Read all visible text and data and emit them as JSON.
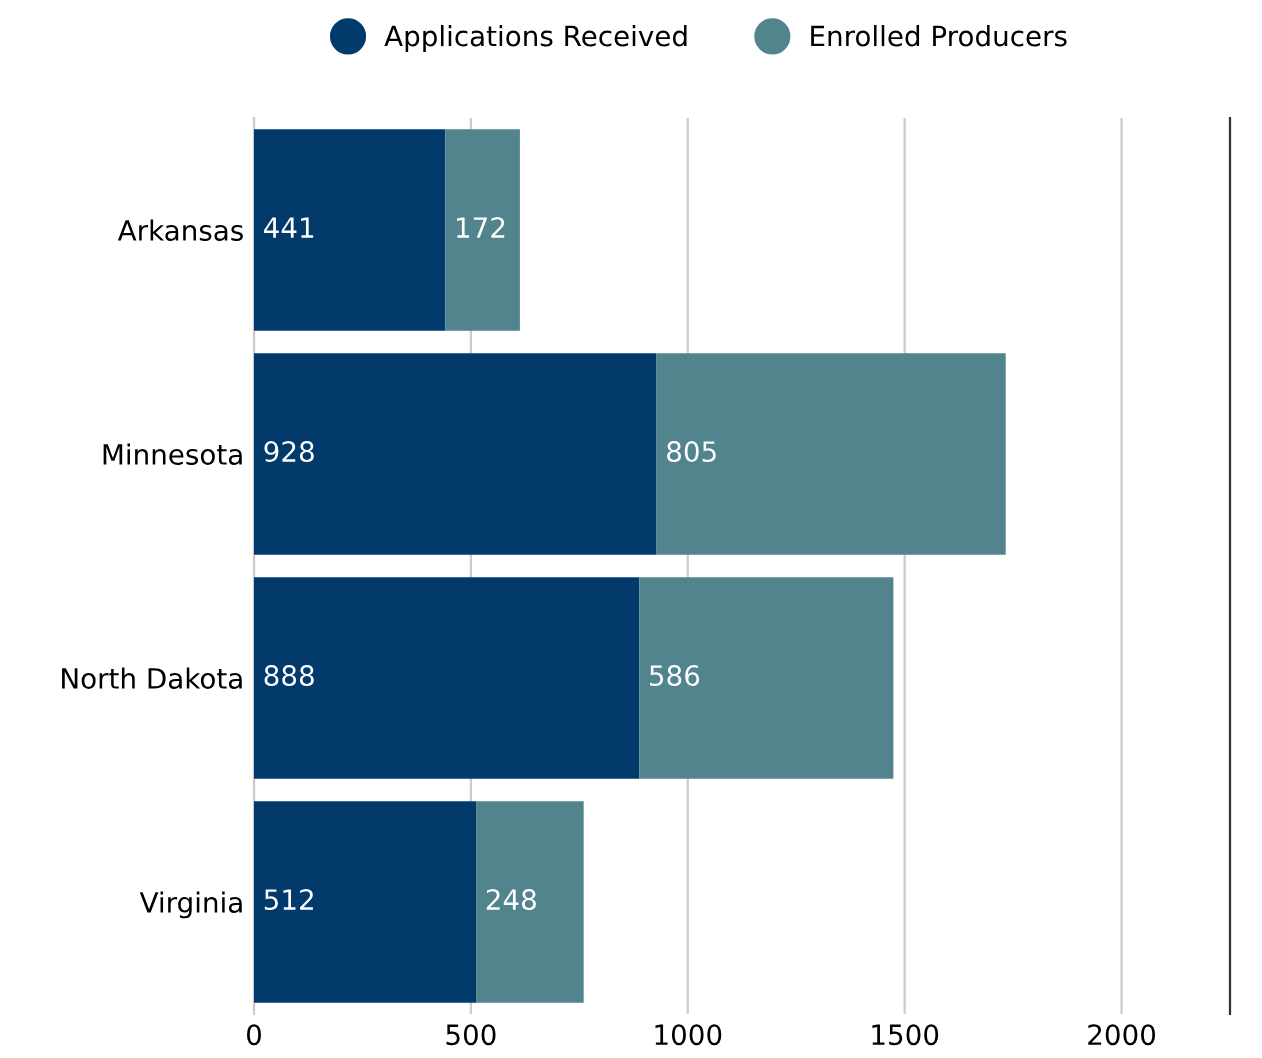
{
  "chart_data": {
    "type": "bar",
    "orientation": "horizontal",
    "stacked": true,
    "categories": [
      "Arkansas",
      "Minnesota",
      "North Dakota",
      "Virginia"
    ],
    "series": [
      {
        "name": "Applications Received",
        "color": "#013a6b",
        "values": [
          441,
          928,
          888,
          512
        ]
      },
      {
        "name": "Enrolled Producers",
        "color": "#52848d",
        "values": [
          172,
          805,
          586,
          248
        ]
      }
    ],
    "xlim": [
      0,
      2250
    ],
    "xticks": [
      0,
      500,
      1000,
      1500,
      2000
    ],
    "grid": "x",
    "legend": "top",
    "data_labels": true
  }
}
